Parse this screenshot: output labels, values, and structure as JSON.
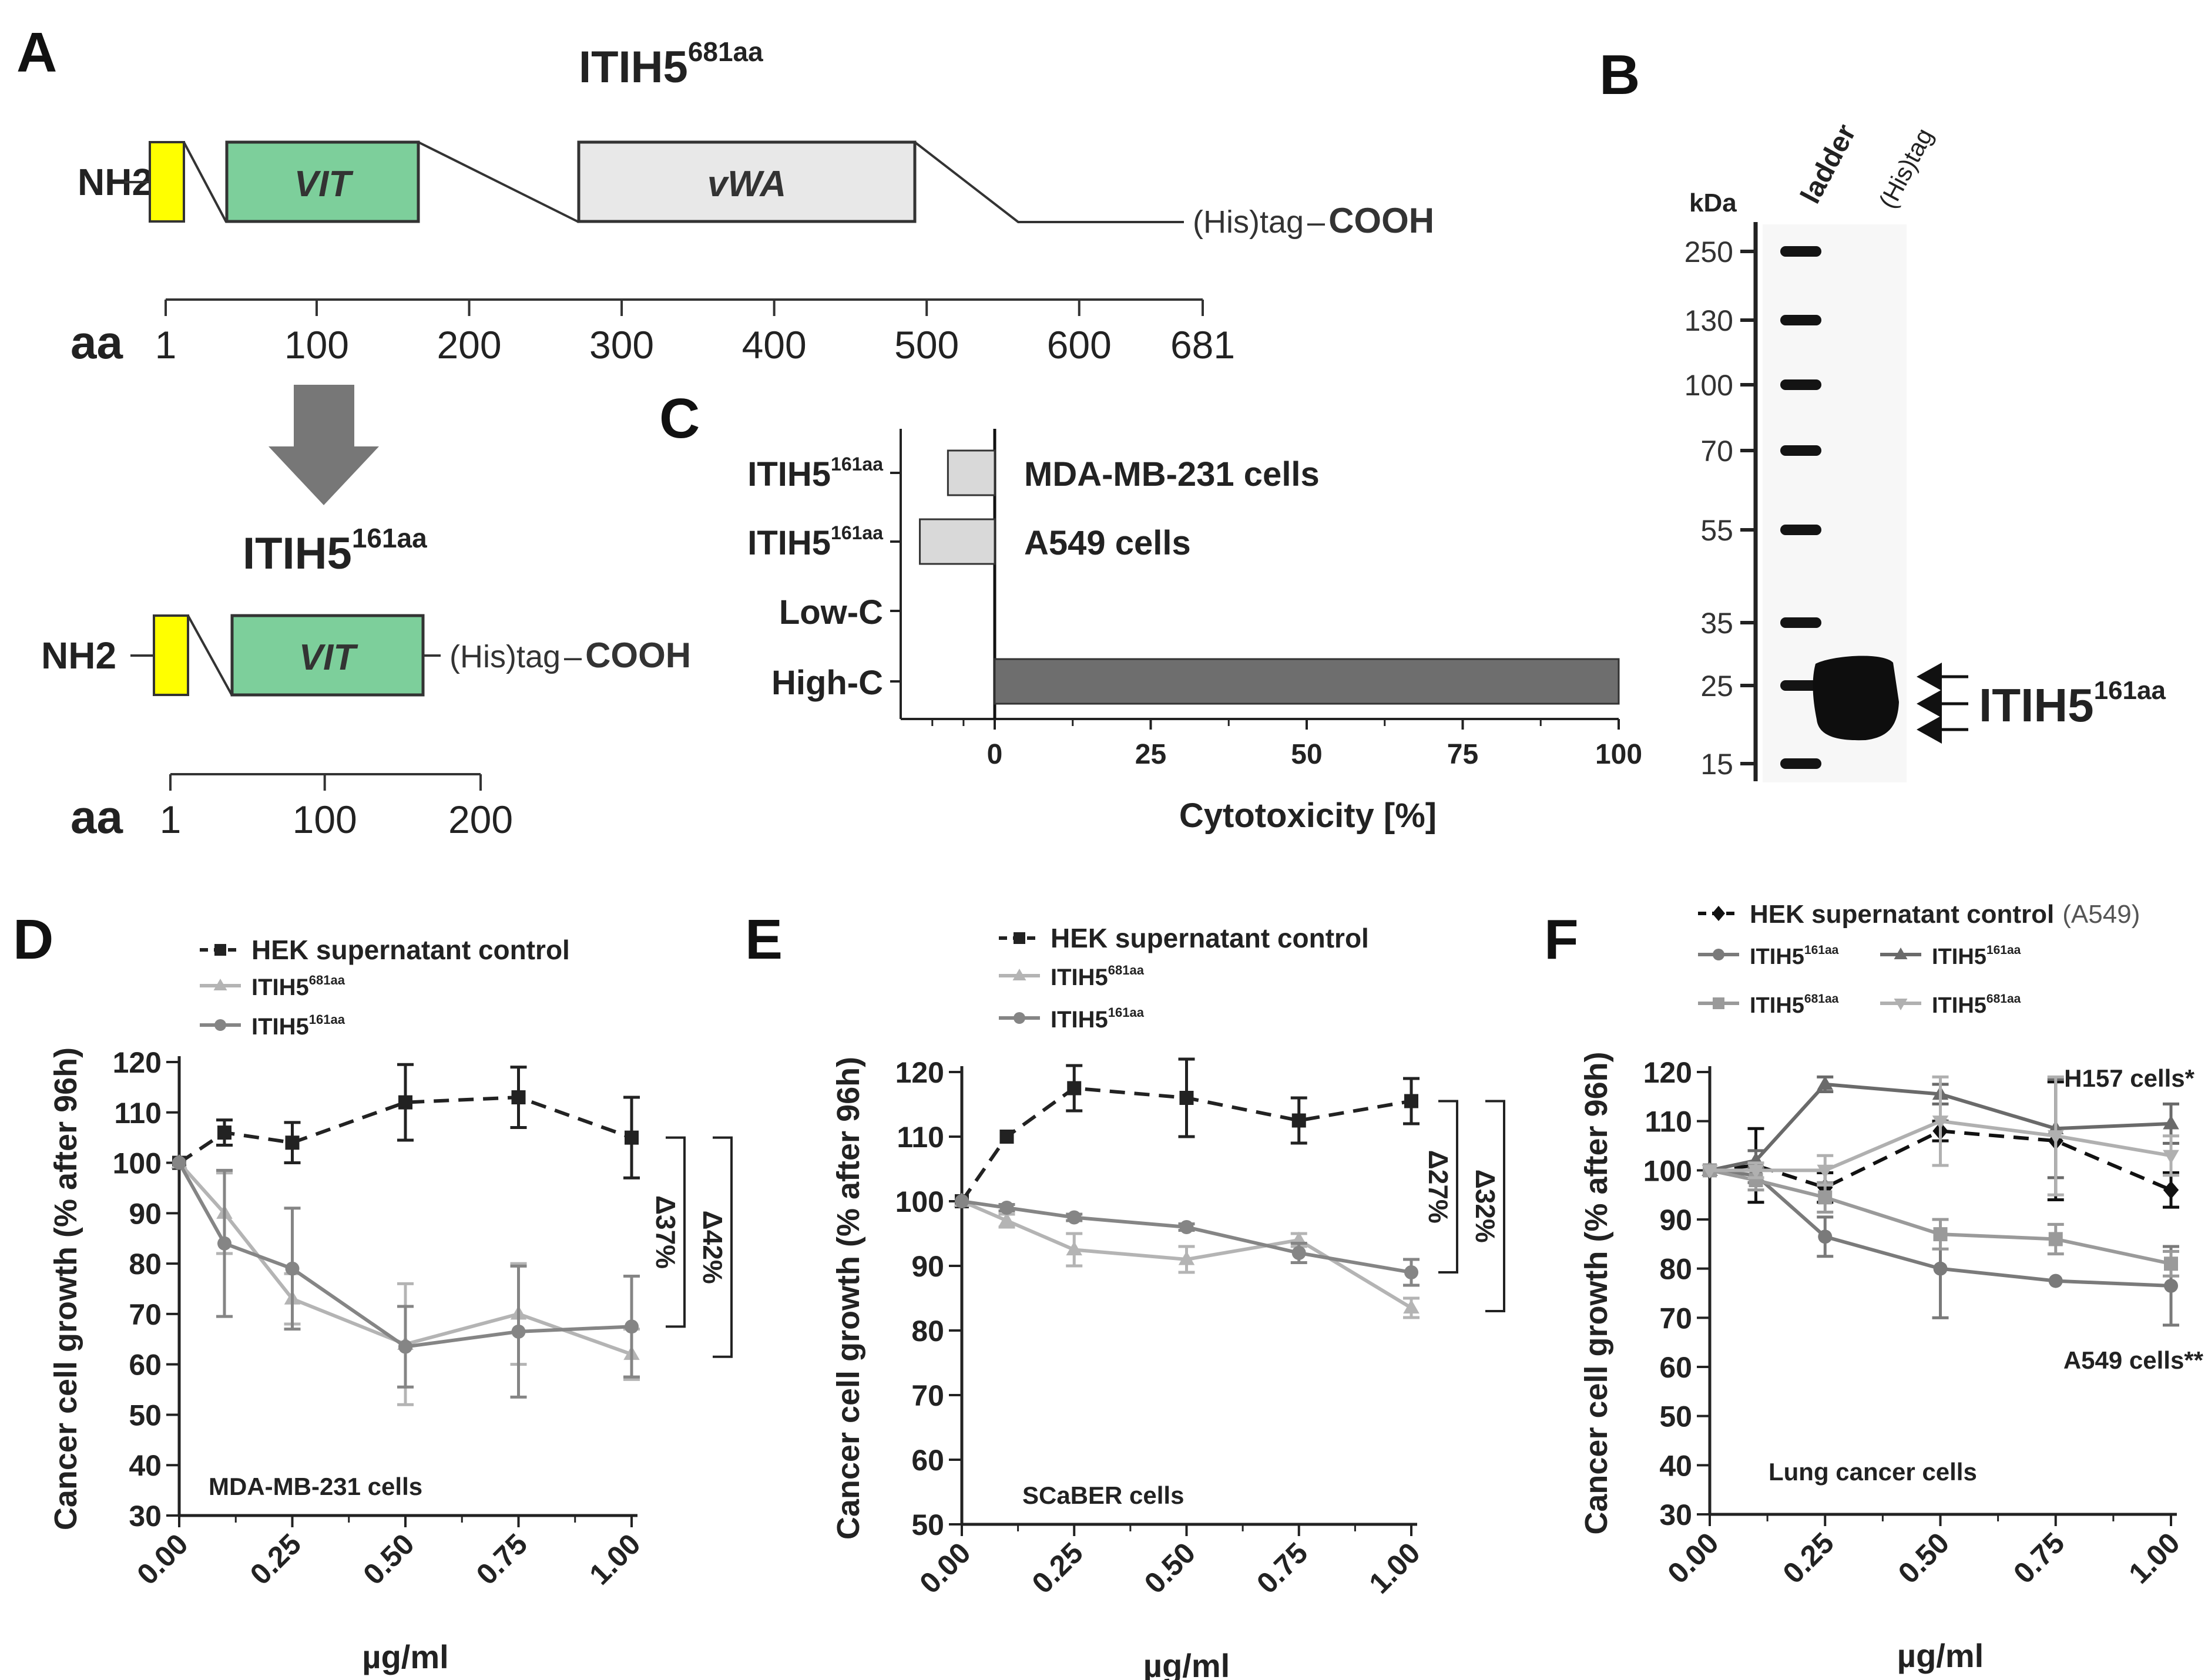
{
  "panels": {
    "a": {
      "label": "A",
      "full": {
        "name": "ITIH5",
        "sup": "681aa",
        "nh2": "NH2",
        "vit": "VIT",
        "vwa": "vWA",
        "tag": "(His)tag",
        "cooh": "COOH",
        "aa": "aa",
        "ticks": [
          "1",
          "100",
          "200",
          "300",
          "400",
          "500",
          "600",
          "681"
        ],
        "tick_values": [
          1,
          100,
          200,
          300,
          400,
          500,
          600,
          681
        ]
      },
      "short": {
        "name": "ITIH5",
        "sup": "161aa",
        "nh2": "NH2",
        "vit": "VIT",
        "tag": "(His)tag",
        "cooh": "COOH",
        "aa": "aa",
        "ticks": [
          "1",
          "100",
          "200"
        ],
        "tick_values": [
          1,
          100,
          200
        ]
      }
    },
    "b": {
      "label": "B",
      "kda": "kDa",
      "lanes": [
        "ladder",
        "(His)tag"
      ],
      "marker_labels": [
        "250",
        "130",
        "100",
        "70",
        "55",
        "35",
        "25",
        "15"
      ],
      "protein_name": "ITIH5",
      "protein_sup": "161aa"
    },
    "c": {
      "label": "C"
    },
    "d": {
      "label": "D"
    },
    "e": {
      "label": "E"
    },
    "f": {
      "label": "F"
    }
  },
  "chart_data": [
    {
      "id": "c",
      "type": "bar",
      "orientation": "horizontal",
      "xlabel": "Cytotoxicity [%]",
      "xticks": [
        "0",
        "25",
        "50",
        "75",
        "100"
      ],
      "xlim": [
        -13,
        100
      ],
      "categories": [
        {
          "label": "ITIH5",
          "sup": "161aa",
          "annotation": "MDA-MB-231 cells"
        },
        {
          "label": "ITIH5",
          "sup": "161aa",
          "annotation": "A549 cells"
        },
        {
          "label": "Low-C",
          "sup": "",
          "annotation": ""
        },
        {
          "label": "High-C",
          "sup": "",
          "annotation": ""
        }
      ],
      "values": [
        -7.5,
        -12,
        0,
        100
      ],
      "colors": [
        "#d9d9d9",
        "#d9d9d9",
        "#d9d9d9",
        "#6e6e6e"
      ]
    },
    {
      "id": "d",
      "type": "line",
      "ylabel": "Cancer cell growth (% after 96h)",
      "xlabel": "µg/ml",
      "ylim": [
        30,
        120
      ],
      "yticks": [
        "30",
        "40",
        "50",
        "60",
        "70",
        "80",
        "90",
        "100",
        "110",
        "120"
      ],
      "xticks": [
        "0.00",
        "0.25",
        "0.50",
        "0.75",
        "1.00"
      ],
      "cell_label": "MDA-MB-231 cells",
      "brackets": [
        "Δ37%",
        "Δ42%"
      ],
      "legend": [
        {
          "name": "HEK supernatant control",
          "sup": "",
          "suffix": ""
        },
        {
          "name": "ITIH5",
          "sup": "681aa",
          "suffix": ""
        },
        {
          "name": "ITIH5",
          "sup": "161aa",
          "suffix": ""
        }
      ],
      "series": [
        {
          "name": "HEK supernatant control",
          "color": "#222222",
          "marker": "square",
          "dashed": true,
          "x": [
            0,
            0.1,
            0.25,
            0.5,
            0.75,
            1.0
          ],
          "y": [
            100,
            106,
            104,
            112,
            113,
            105
          ],
          "err": [
            0,
            2.5,
            4,
            7.5,
            6,
            8
          ]
        },
        {
          "name": "ITIH5 681aa",
          "color": "#b4b4b4",
          "marker": "triangle",
          "dashed": false,
          "x": [
            0,
            0.1,
            0.25,
            0.5,
            0.75,
            1.0
          ],
          "y": [
            100,
            90,
            73,
            64,
            70,
            62
          ],
          "err": [
            0,
            8,
            5,
            12,
            10,
            5
          ]
        },
        {
          "name": "ITIH5 161aa",
          "color": "#858585",
          "marker": "circle",
          "dashed": false,
          "x": [
            0,
            0.1,
            0.25,
            0.5,
            0.75,
            1.0
          ],
          "y": [
            100,
            84,
            79,
            63.5,
            66.5,
            67.5
          ],
          "err": [
            0,
            14.5,
            12,
            8,
            13,
            10
          ]
        }
      ]
    },
    {
      "id": "e",
      "type": "line",
      "ylabel": "Cancer cell growth (% after 96h)",
      "xlabel": "µg/ml",
      "ylim": [
        50,
        120
      ],
      "yticks": [
        "50",
        "60",
        "70",
        "80",
        "90",
        "100",
        "110",
        "120"
      ],
      "xticks": [
        "0.00",
        "0.25",
        "0.50",
        "0.75",
        "1.00"
      ],
      "cell_label": "SCaBER cells",
      "brackets": [
        "Δ27%",
        "Δ32%"
      ],
      "legend": [
        {
          "name": "HEK supernatant control",
          "sup": "",
          "suffix": ""
        },
        {
          "name": "ITIH5",
          "sup": "681aa",
          "suffix": ""
        },
        {
          "name": "ITIH5",
          "sup": "161aa",
          "suffix": ""
        }
      ],
      "series": [
        {
          "name": "HEK supernatant control",
          "color": "#222222",
          "marker": "square",
          "dashed": true,
          "x": [
            0,
            0.1,
            0.25,
            0.5,
            0.75,
            1.0
          ],
          "y": [
            100,
            110,
            117.5,
            116,
            112.5,
            115.5
          ],
          "err": [
            0,
            0,
            3.5,
            6,
            3.5,
            3.5
          ]
        },
        {
          "name": "ITIH5 681aa",
          "color": "#b4b4b4",
          "marker": "triangle",
          "dashed": false,
          "x": [
            0,
            0.1,
            0.25,
            0.5,
            0.75,
            1.0
          ],
          "y": [
            100,
            97,
            92.5,
            91,
            94,
            83.5
          ],
          "err": [
            0,
            1,
            2.5,
            2,
            1,
            1.5
          ]
        },
        {
          "name": "ITIH5 161aa",
          "color": "#858585",
          "marker": "circle",
          "dashed": false,
          "x": [
            0,
            0.1,
            0.25,
            0.5,
            0.75,
            1.0
          ],
          "y": [
            100,
            99,
            97.5,
            96,
            92,
            89
          ],
          "err": [
            0,
            0.5,
            0.5,
            0.5,
            1.5,
            2
          ]
        }
      ]
    },
    {
      "id": "f",
      "type": "line",
      "ylabel": "Cancer cell growth (% after 96h)",
      "xlabel": "µg/ml",
      "ylim": [
        30,
        120
      ],
      "yticks": [
        "30",
        "40",
        "50",
        "60",
        "70",
        "80",
        "90",
        "100",
        "110",
        "120"
      ],
      "xticks": [
        "0.00",
        "0.25",
        "0.50",
        "0.75",
        "1.00"
      ],
      "cell_label": "Lung cancer cells",
      "annotations": [
        "H157 cells*",
        "A549 cells**"
      ],
      "legend": [
        {
          "name": "HEK supernatant control",
          "sup": "",
          "suffix": "(A549)"
        },
        {
          "name": "ITIH5",
          "sup": "161aa",
          "suffix": ""
        },
        {
          "name": "ITIH5",
          "sup": "161aa",
          "suffix": ""
        },
        {
          "name": "ITIH5",
          "sup": "681aa",
          "suffix": ""
        },
        {
          "name": "ITIH5",
          "sup": "681aa",
          "suffix": ""
        }
      ],
      "series": [
        {
          "name": "HEK supernatant control (A549)",
          "color": "#111111",
          "marker": "diamond",
          "dashed": true,
          "x": [
            0,
            0.1,
            0.25,
            0.5,
            0.75,
            1.0
          ],
          "y": [
            100,
            101,
            96.5,
            108,
            106,
            96
          ],
          "err": [
            0,
            7.5,
            3,
            2,
            12,
            3.5
          ]
        },
        {
          "name": "ITIH5 161aa (A549)",
          "color": "#7a7a7a",
          "marker": "circle",
          "dashed": false,
          "x": [
            0,
            0.1,
            0.25,
            0.5,
            0.75,
            1.0
          ],
          "y": [
            100,
            99,
            86.5,
            80,
            77.5,
            76.5
          ],
          "err": [
            0,
            1.5,
            4,
            10,
            0,
            8
          ]
        },
        {
          "name": "ITIH5 161aa (H157)",
          "color": "#6a6a6a",
          "marker": "triangle",
          "dashed": false,
          "x": [
            0,
            0.1,
            0.25,
            0.5,
            0.75,
            1.0
          ],
          "y": [
            100,
            102,
            117.5,
            115.5,
            108.5,
            109.5
          ],
          "err": [
            0,
            2,
            1.5,
            2,
            10,
            4
          ]
        },
        {
          "name": "ITIH5 681aa (A549)",
          "color": "#9a9a9a",
          "marker": "square",
          "dashed": false,
          "x": [
            0,
            0.1,
            0.25,
            0.5,
            0.75,
            1.0
          ],
          "y": [
            100,
            98,
            94.5,
            87,
            86,
            81
          ],
          "err": [
            0,
            2,
            3,
            3,
            3,
            2.5
          ]
        },
        {
          "name": "ITIH5 681aa (H157)",
          "color": "#b0b0b0",
          "marker": "triangle-down",
          "dashed": false,
          "x": [
            0,
            0.1,
            0.25,
            0.5,
            0.75,
            1.0
          ],
          "y": [
            100,
            100,
            100,
            110,
            107,
            103
          ],
          "err": [
            0,
            1.5,
            3,
            9,
            12,
            4
          ]
        }
      ]
    }
  ]
}
